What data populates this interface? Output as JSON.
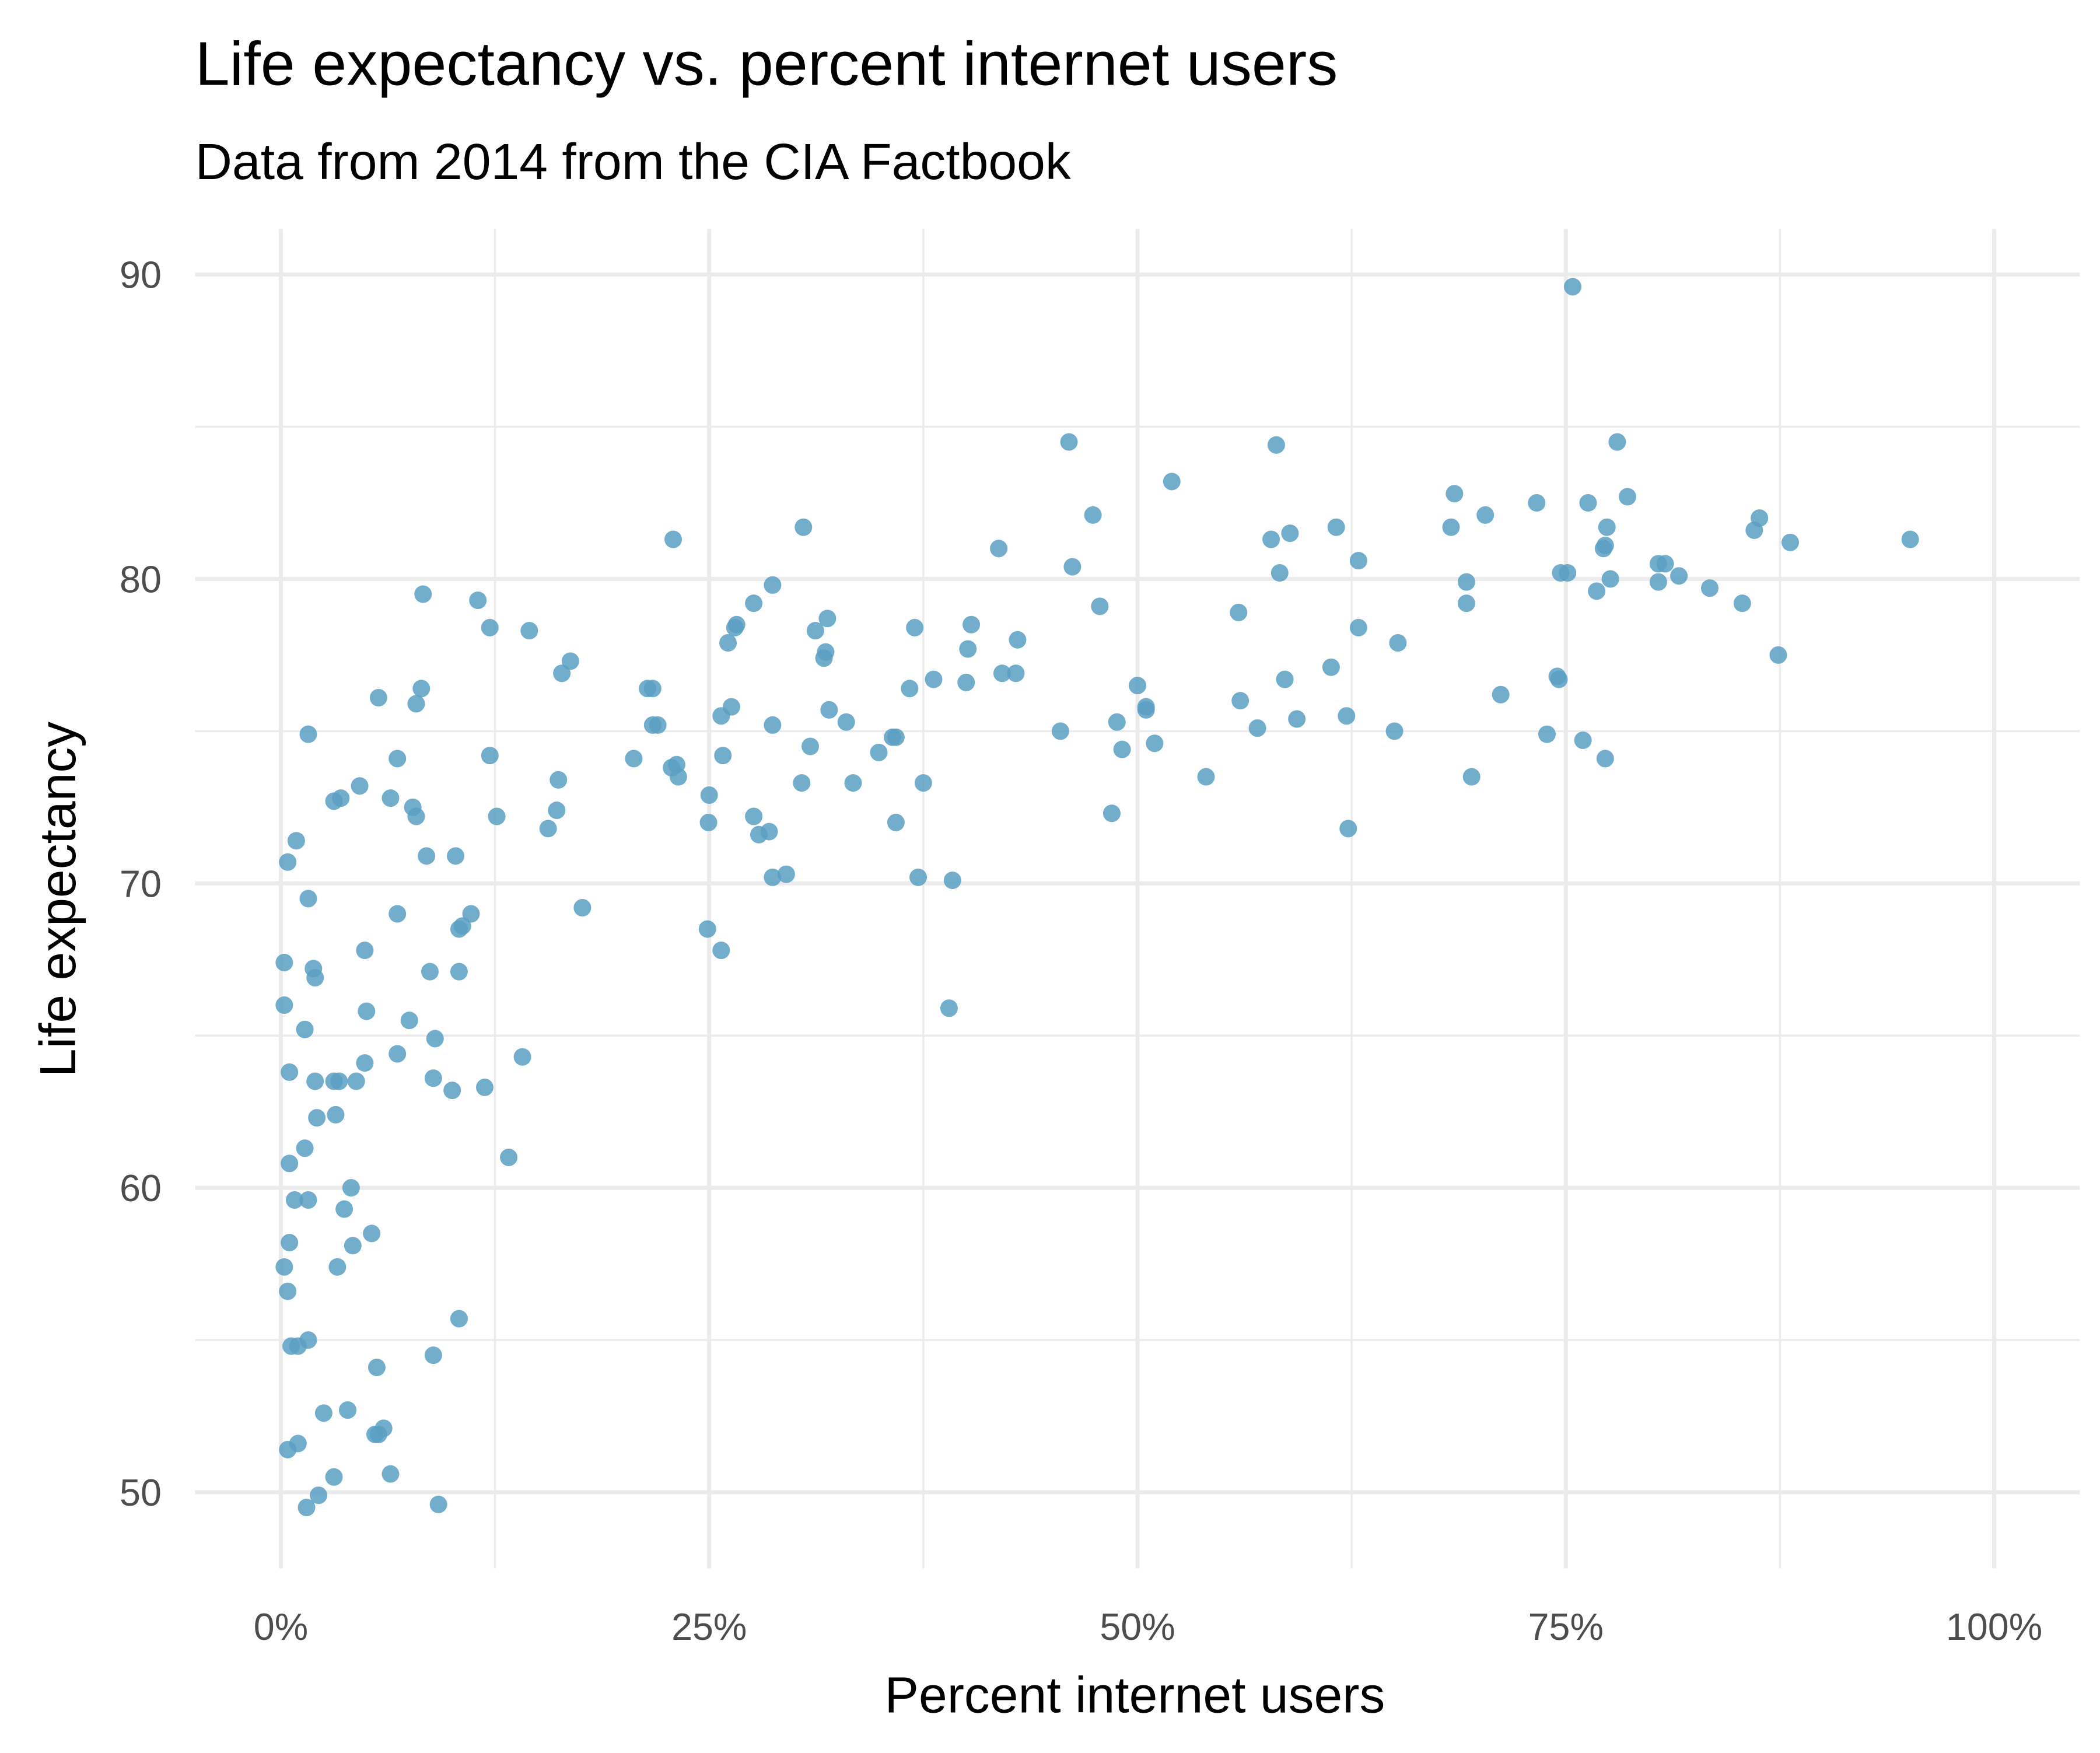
{
  "chart_data": {
    "type": "scatter",
    "title": "Life expectancy vs. percent internet users",
    "subtitle": "Data from 2014 from the CIA Factbook",
    "x_label": "Percent internet users",
    "y_label": "Life expectancy",
    "color": "#5b9fc3",
    "grid": true,
    "xlim": [
      -5,
      105
    ],
    "ylim": [
      47.5,
      91.5
    ],
    "xticks": [
      {
        "value": 0,
        "label": "0%"
      },
      {
        "value": 25,
        "label": "25%"
      },
      {
        "value": 50,
        "label": "50%"
      },
      {
        "value": 75,
        "label": "75%"
      },
      {
        "value": 100,
        "label": "100%"
      }
    ],
    "yticks": [
      50,
      60,
      70,
      80,
      90
    ],
    "xminor": [
      12.5,
      37.5,
      62.5,
      87.5
    ],
    "yminor": [
      55,
      65,
      75,
      85
    ],
    "x": [
      75.4,
      46.0,
      58.1,
      78.0,
      52.0,
      68.5,
      78.6,
      73.3,
      76.3,
      47.4,
      70.3,
      86.3,
      30.5,
      61.6,
      68.3,
      77.4,
      86.0,
      22.9,
      57.8,
      58.9,
      95.1,
      88.1,
      41.9,
      77.2,
      77.3,
      62.9,
      80.4,
      80.8,
      46.2,
      74.7,
      75.1,
      58.3,
      81.6,
      77.6,
      69.2,
      80.4,
      83.4,
      28.7,
      76.8,
      8.3,
      11.5,
      27.6,
      69.2,
      85.3,
      47.8,
      55.9,
      31.9,
      40.3,
      26.6,
      31.2,
      26.5,
      37.0,
      62.9,
      12.2,
      14.5,
      43.0,
      26.1,
      65.2,
      31.8,
      40.1,
      87.4,
      16.9,
      31.7,
      61.3,
      16.4,
      42.1,
      42.9,
      38.1,
      58.6,
      74.5,
      74.6,
      40.0,
      8.2,
      21.4,
      21.7,
      36.7,
      50.0,
      71.2,
      5.7,
      7.9,
      56.0,
      50.5,
      50.5,
      26.3,
      32.0,
      25.7,
      62.2,
      59.3,
      33.0,
      48.8,
      21.7,
      22.0,
      28.7,
      57.0,
      1.6,
      45.5,
      65.0,
      73.9,
      35.7,
      35.9,
      51.0,
      76.0,
      30.9,
      34.9,
      49.1,
      25.8,
      12.2,
      20.6,
      6.8,
      77.3,
      23.1,
      22.8,
      23.2,
      54.0,
      69.5,
      16.2,
      33.4,
      37.5,
      30.4,
      4.6,
      3.5,
      3.1,
      6.4,
      25.0,
      7.7,
      7.9,
      16.1,
      12.6,
      27.6,
      48.5,
      24.96,
      35.9,
      15.6,
      62.3,
      28.5,
      27.9,
      0.9,
      8.5,
      10.2,
      0.4,
      29.5,
      28.7,
      37.2,
      39.2,
      1.6,
      17.6,
      6.8,
      11.1,
      10.6,
      10.4,
      24.9,
      4.9,
      25.7,
      0.2,
      1.9,
      8.7,
      10.4,
      2.0,
      0.2,
      5.0,
      39.0,
      7.5,
      1.4,
      9.0,
      6.8,
      14.1,
      4.9,
      0.5,
      2.0,
      3.1,
      3.4,
      4.4,
      8.9,
      10.0,
      11.9,
      3.2,
      2.1,
      1.4,
      13.3,
      0.5,
      4.1,
      0.8,
      1.6,
      3.7,
      5.3,
      0.5,
      4.2,
      0.2,
      3.3,
      0.4,
      10.4,
      1.6,
      0.6,
      1.0,
      8.9,
      5.6,
      2.5,
      3.9,
      6.0,
      5.7,
      5.5,
      1.0,
      0.4,
      6.4,
      3.1,
      2.2,
      1.5,
      9.2
    ],
    "values": [
      89.6,
      84.5,
      84.4,
      84.5,
      83.2,
      82.8,
      82.7,
      82.5,
      82.5,
      82.1,
      82.1,
      82.0,
      81.7,
      81.7,
      81.7,
      81.7,
      81.6,
      81.3,
      81.3,
      81.5,
      81.3,
      81.2,
      81.0,
      81.0,
      81.1,
      80.6,
      80.5,
      80.5,
      80.4,
      80.2,
      80.2,
      80.2,
      80.1,
      80.0,
      79.9,
      79.9,
      79.7,
      79.8,
      79.6,
      79.5,
      79.3,
      79.2,
      79.2,
      79.2,
      79.1,
      78.9,
      78.7,
      78.5,
      78.5,
      78.3,
      78.4,
      78.4,
      78.4,
      78.4,
      78.3,
      78.0,
      77.9,
      77.9,
      77.6,
      77.7,
      77.5,
      77.3,
      77.4,
      77.1,
      76.9,
      76.9,
      76.9,
      76.7,
      76.7,
      76.8,
      76.7,
      76.6,
      76.4,
      76.4,
      76.4,
      76.4,
      76.5,
      76.2,
      76.1,
      75.9,
      76.0,
      75.8,
      75.7,
      75.8,
      75.7,
      75.5,
      75.5,
      75.4,
      75.3,
      75.3,
      75.2,
      75.2,
      75.2,
      75.1,
      74.9,
      75.0,
      75.0,
      74.9,
      74.8,
      74.8,
      74.6,
      74.7,
      74.5,
      74.3,
      74.4,
      74.2,
      74.2,
      74.1,
      74.1,
      74.1,
      73.9,
      73.8,
      73.5,
      73.5,
      73.5,
      73.4,
      73.3,
      73.3,
      73.3,
      73.2,
      72.8,
      72.7,
      72.8,
      72.9,
      72.5,
      72.2,
      72.4,
      72.2,
      72.2,
      72.3,
      72.0,
      72.0,
      71.8,
      71.8,
      71.7,
      71.6,
      71.4,
      70.9,
      70.9,
      70.7,
      70.3,
      70.2,
      70.2,
      70.1,
      69.5,
      69.2,
      69.0,
      69.0,
      68.6,
      68.5,
      68.5,
      67.8,
      67.8,
      67.4,
      67.2,
      67.1,
      67.1,
      66.9,
      66.0,
      65.8,
      65.9,
      65.5,
      65.2,
      64.9,
      64.4,
      64.3,
      64.1,
      63.8,
      63.5,
      63.5,
      63.5,
      63.5,
      63.6,
      63.2,
      63.3,
      62.4,
      62.3,
      61.3,
      61.0,
      60.8,
      60.0,
      59.6,
      59.6,
      59.3,
      58.5,
      58.2,
      58.1,
      57.4,
      57.4,
      56.6,
      55.7,
      55.0,
      54.8,
      54.8,
      54.5,
      54.1,
      52.6,
      52.7,
      52.1,
      51.9,
      51.9,
      51.6,
      51.4,
      50.6,
      50.5,
      49.9,
      49.5,
      49.6
    ]
  }
}
